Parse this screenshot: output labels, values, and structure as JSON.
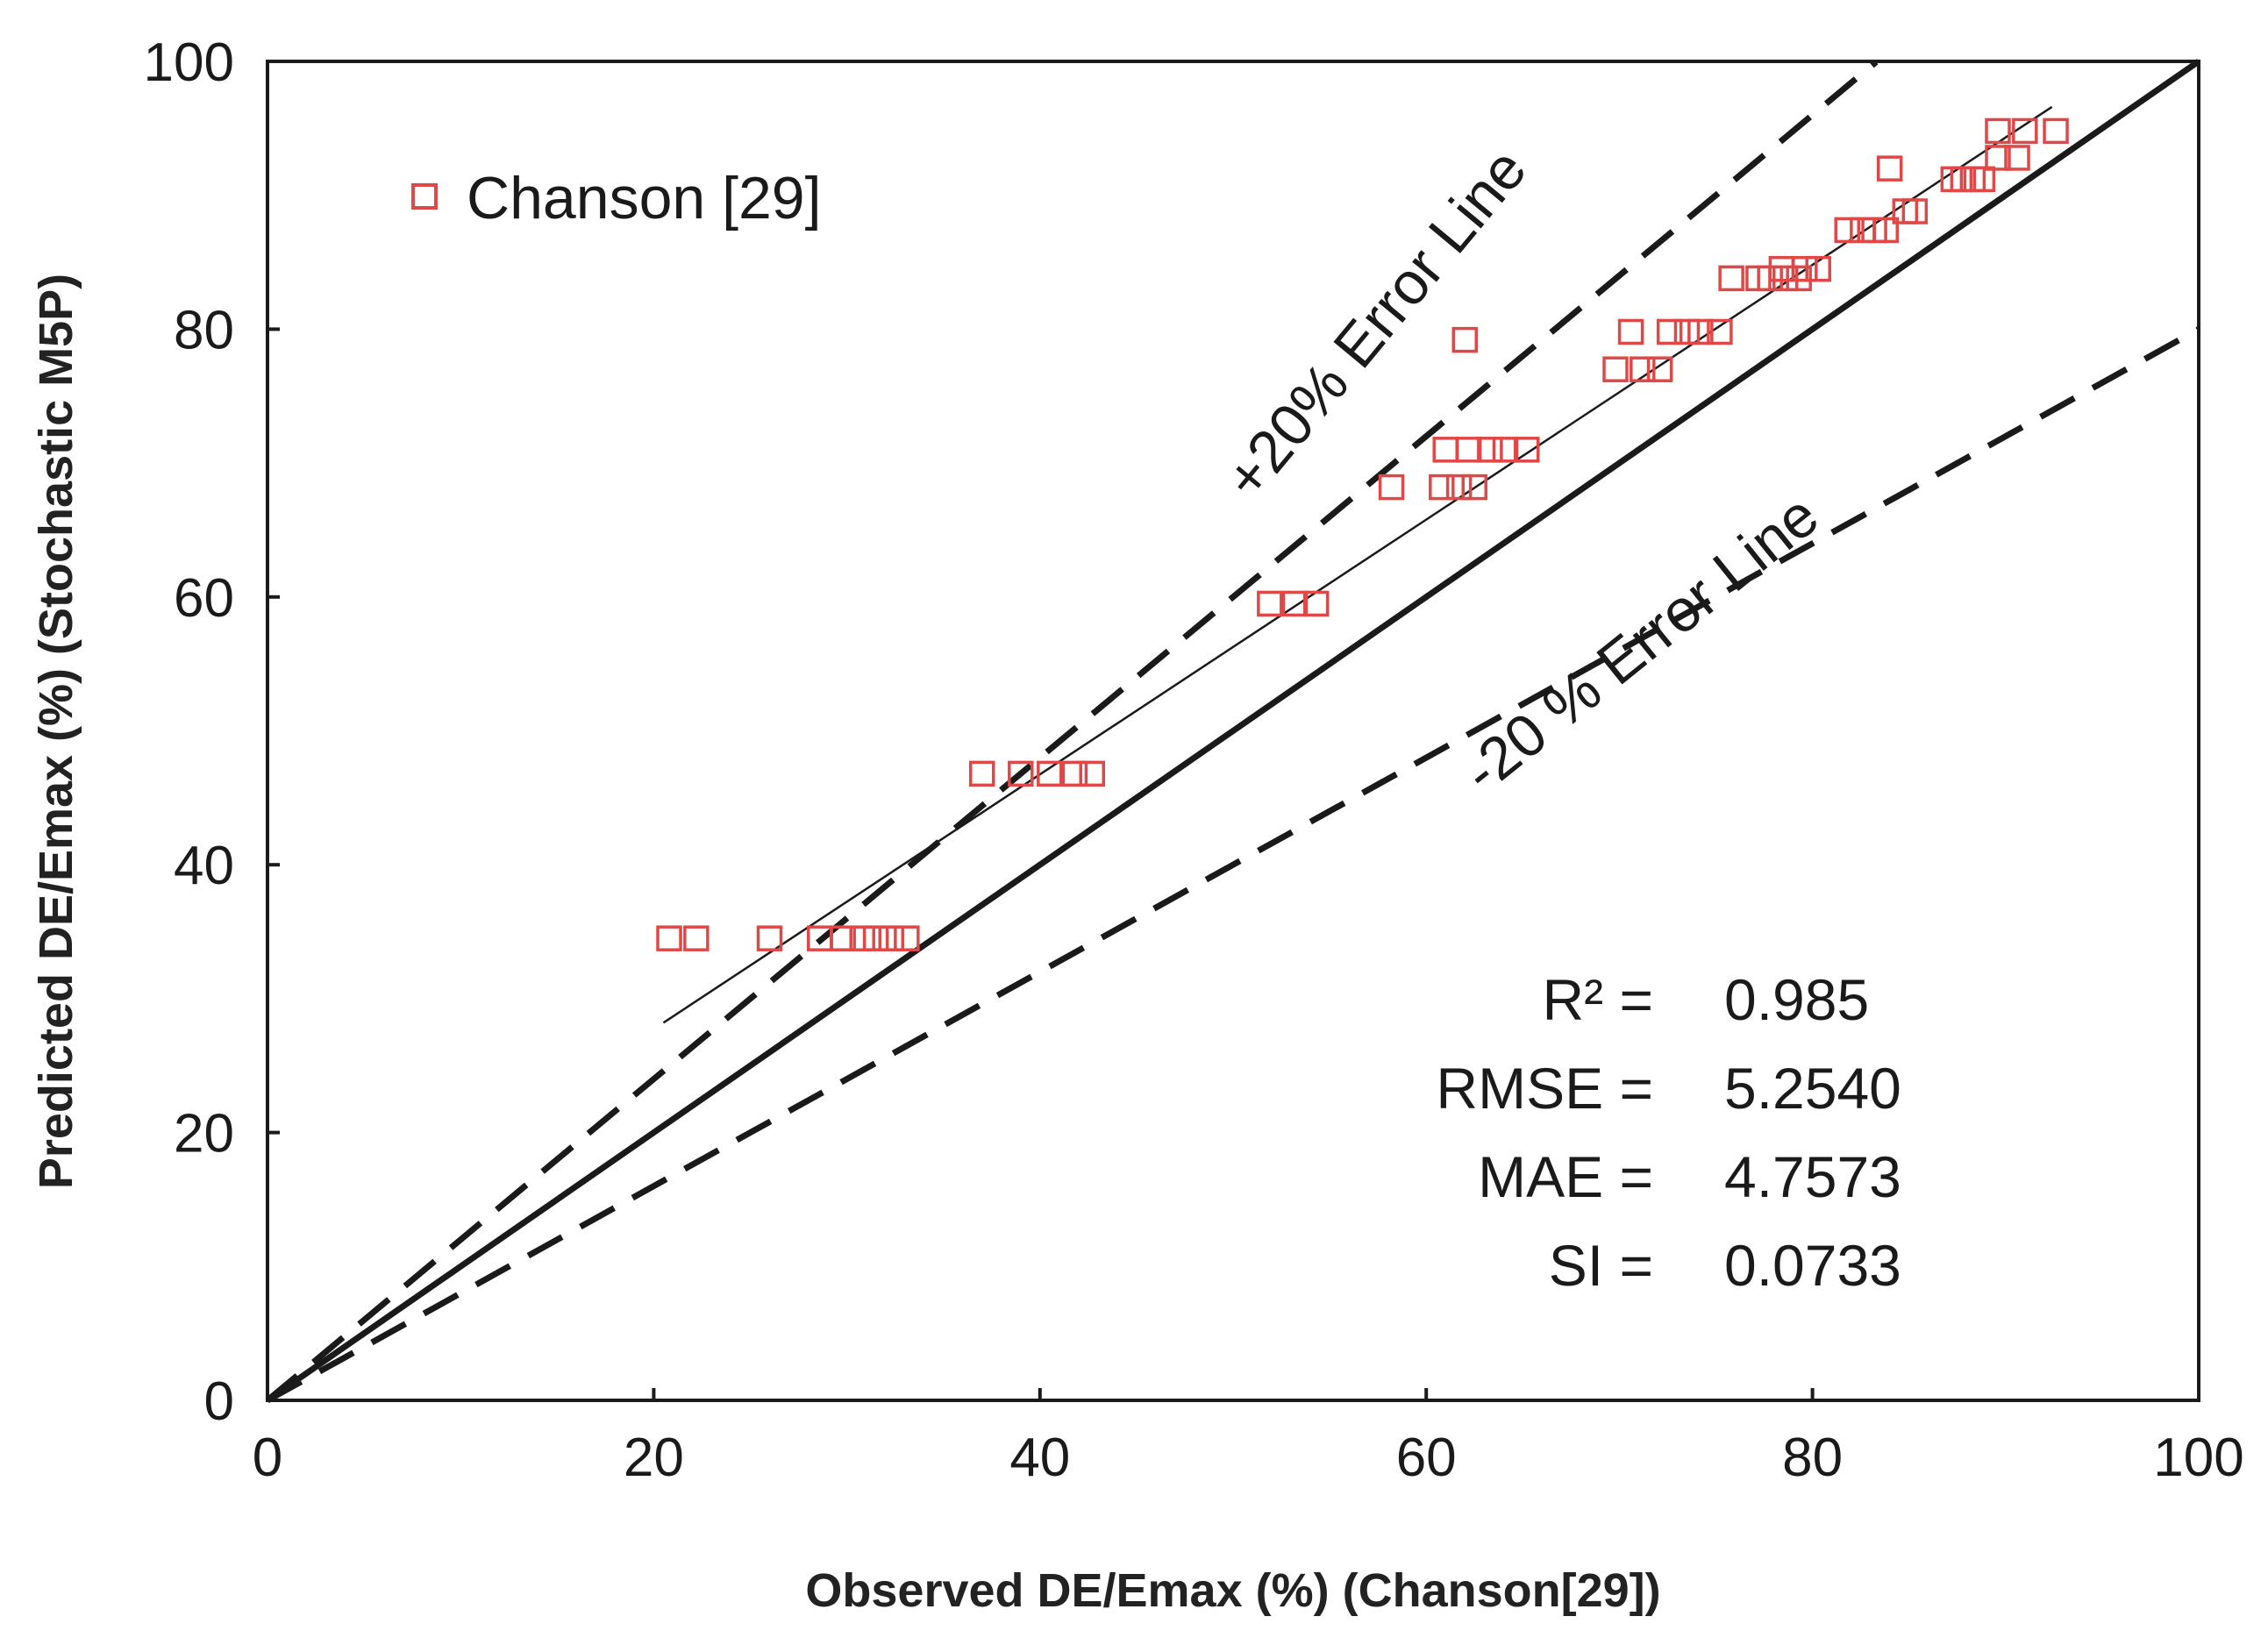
{
  "chart_data": {
    "type": "scatter",
    "xlabel": "Observed DE/Emax (%) (Chanson[29])",
    "ylabel": "Predicted DE/Emax (%) (Stochastic M5P)",
    "xlim": [
      0,
      100
    ],
    "ylim": [
      0,
      100
    ],
    "xticks": [
      "0",
      "20",
      "40",
      "60",
      "80",
      "100"
    ],
    "yticks": [
      "0",
      "20",
      "40",
      "60",
      "80",
      "100"
    ],
    "grid": false,
    "legend": {
      "position": "top-left",
      "entries": [
        "Chanson [29]"
      ]
    },
    "series": [
      {
        "name": "Chanson [29]",
        "color": "#e04848",
        "marker": "hollow-square",
        "points": [
          [
            20.8,
            34.5
          ],
          [
            22.2,
            34.5
          ],
          [
            26.0,
            34.5
          ],
          [
            28.6,
            34.5
          ],
          [
            29.8,
            34.5
          ],
          [
            30.8,
            34.5
          ],
          [
            31.5,
            34.5
          ],
          [
            32.3,
            34.5
          ],
          [
            33.1,
            34.5
          ],
          [
            37.0,
            46.8
          ],
          [
            39.0,
            46.8
          ],
          [
            40.5,
            46.8
          ],
          [
            41.8,
            46.8
          ],
          [
            42.7,
            46.8
          ],
          [
            51.9,
            59.5
          ],
          [
            53.2,
            59.5
          ],
          [
            54.3,
            59.5
          ],
          [
            58.2,
            68.2
          ],
          [
            60.8,
            68.2
          ],
          [
            61.7,
            68.2
          ],
          [
            62.5,
            68.2
          ],
          [
            61.0,
            71.0
          ],
          [
            62.2,
            71.0
          ],
          [
            63.3,
            71.0
          ],
          [
            64.1,
            71.0
          ],
          [
            65.2,
            71.0
          ],
          [
            62.0,
            79.2
          ],
          [
            69.8,
            77.0
          ],
          [
            71.2,
            77.0
          ],
          [
            72.1,
            77.0
          ],
          [
            70.6,
            79.8
          ],
          [
            72.6,
            79.8
          ],
          [
            73.5,
            79.8
          ],
          [
            74.2,
            79.8
          ],
          [
            75.2,
            79.8
          ],
          [
            75.8,
            83.8
          ],
          [
            77.2,
            83.8
          ],
          [
            77.8,
            83.8
          ],
          [
            78.6,
            83.8
          ],
          [
            79.3,
            83.8
          ],
          [
            78.4,
            84.5
          ],
          [
            79.6,
            84.5
          ],
          [
            80.3,
            84.5
          ],
          [
            81.8,
            87.4
          ],
          [
            82.6,
            87.4
          ],
          [
            83.2,
            87.4
          ],
          [
            83.8,
            87.4
          ],
          [
            84.8,
            88.8
          ],
          [
            85.3,
            88.8
          ],
          [
            84.0,
            92.0
          ],
          [
            87.3,
            91.2
          ],
          [
            87.8,
            91.2
          ],
          [
            88.3,
            91.2
          ],
          [
            88.8,
            91.2
          ],
          [
            89.6,
            92.8
          ],
          [
            90.6,
            92.8
          ],
          [
            89.6,
            94.8
          ],
          [
            91.0,
            94.8
          ],
          [
            92.6,
            94.8
          ]
        ]
      }
    ],
    "lines": [
      {
        "name": "1:1 line",
        "style": "solid",
        "slope": 1.0,
        "x_range": [
          0,
          100
        ]
      },
      {
        "name": "+20% Error Line",
        "style": "dashed",
        "slope": 1.2,
        "x_range": [
          0,
          83.3
        ]
      },
      {
        "name": "-20% Error Line",
        "style": "dashed",
        "slope": 0.8,
        "x_range": [
          0,
          100
        ]
      },
      {
        "name": "trend line",
        "style": "thin-solid",
        "from": [
          20.5,
          28.2
        ],
        "to": [
          92.4,
          96.6
        ]
      }
    ],
    "annotations": {
      "plus_error_label": "+20% Error Line",
      "minus_error_label": "-20 % Error Line"
    },
    "stats": [
      {
        "label": "R² =",
        "value": "0.985"
      },
      {
        "label": "RMSE =",
        "value": "5.2540"
      },
      {
        "label": "MAE =",
        "value": "4.7573"
      },
      {
        "label": "SI =",
        "value": "0.0733"
      }
    ]
  }
}
